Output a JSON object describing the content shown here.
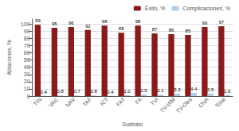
{
  "chart_data": {
    "type": "bar",
    "xlabel": "Sustrato",
    "ylabel": "Ablaciones, %",
    "categories": [
      "TIN",
      "VAC",
      "NAV",
      "TAF",
      "ICT",
      "FAT",
      "FA",
      "TVI",
      "TV-IAM",
      "TV-Otra",
      "CNA",
      "Total"
    ],
    "series": [
      {
        "name": "Éxito, %",
        "color": "#8B1A1A",
        "values": [
          99,
          95,
          96,
          92,
          98,
          88,
          98,
          87,
          86,
          85,
          96,
          97
        ]
      },
      {
        "name": "Complicaciones, %",
        "color": "#AECDE8",
        "values": [
          0.4,
          0.8,
          0.7,
          0.8,
          0.4,
          1.0,
          2.5,
          2.1,
          3.3,
          4.4,
          3.5,
          1.6
        ],
        "value_labels": [
          "0.4",
          "0.8",
          "0.7",
          "0.8",
          "0.4",
          "1.0",
          "2.5",
          "2.1",
          "3.3",
          "4.4",
          "3.5",
          "1.6"
        ]
      }
    ],
    "ylim": [
      0,
      107
    ],
    "yticks": [
      0,
      10,
      20,
      30,
      40,
      50,
      60,
      70,
      80,
      90,
      100
    ],
    "grid": true,
    "legend": "upper right",
    "data_labels": true
  }
}
